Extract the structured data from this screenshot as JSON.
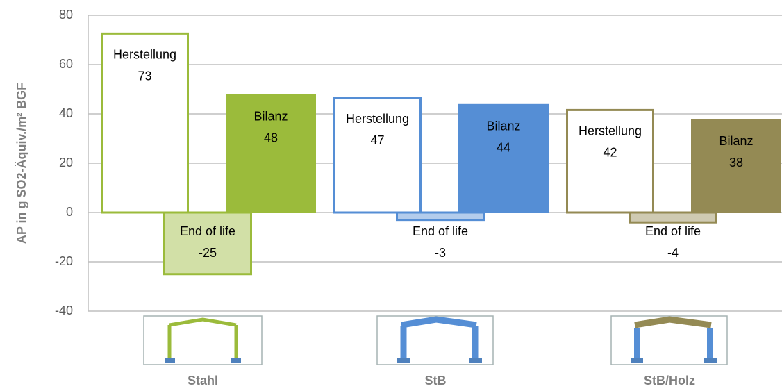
{
  "chart_data": {
    "type": "bar",
    "y_axis_label": "AP in g SO2-Äquiv./m² BGF",
    "categories": [
      "Stahl",
      "StB",
      "StB/Holz"
    ],
    "colors": [
      "#9bbb3b",
      "#558ed5",
      "#948a54"
    ],
    "series": [
      {
        "name": "Herstellung",
        "style": "outline",
        "values": [
          73,
          47,
          42
        ]
      },
      {
        "name": "End of life",
        "style": "light",
        "values": [
          -25,
          -3,
          -4
        ]
      },
      {
        "name": "Bilanz",
        "style": "solid",
        "values": [
          48,
          44,
          38
        ]
      }
    ],
    "ylim": [
      -40,
      80
    ],
    "yticks": [
      -40,
      -20,
      0,
      20,
      40,
      60,
      80
    ],
    "grid": true
  }
}
